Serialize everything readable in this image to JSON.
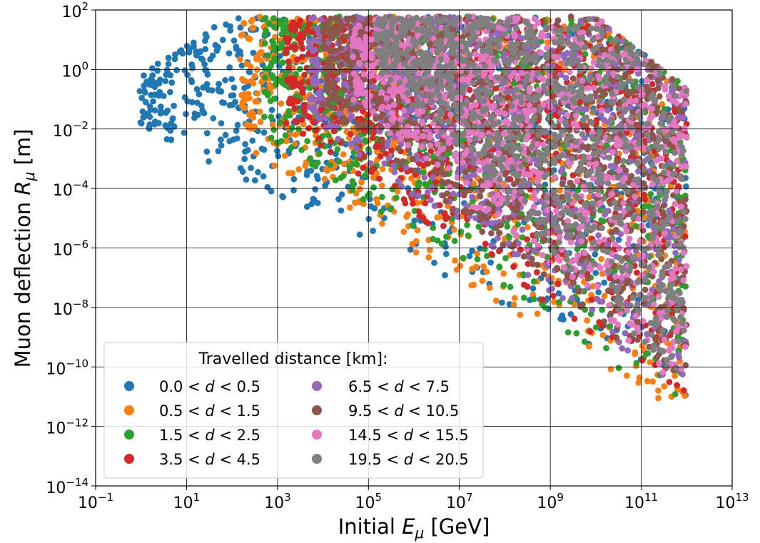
{
  "chart_data": {
    "type": "scatter",
    "xlabel_text": "Initial ",
    "xlabel_sym": "E",
    "xlabel_sub": "μ",
    "xlabel_unit": " [GeV]",
    "ylabel_text": "Muon deflection ",
    "ylabel_sym": "R",
    "ylabel_sub": "μ",
    "ylabel_unit": " [m]",
    "x_scale": "log",
    "y_scale": "log",
    "xlim": [
      0.1,
      10000000000000.0
    ],
    "ylim": [
      1e-14,
      100
    ],
    "grid": true,
    "x_ticks": [
      {
        "base": "10",
        "exp": "−1"
      },
      {
        "base": "10",
        "exp": "1"
      },
      {
        "base": "10",
        "exp": "3"
      },
      {
        "base": "10",
        "exp": "5"
      },
      {
        "base": "10",
        "exp": "7"
      },
      {
        "base": "10",
        "exp": "9"
      },
      {
        "base": "10",
        "exp": "11"
      },
      {
        "base": "10",
        "exp": "13"
      }
    ],
    "y_ticks": [
      {
        "base": "10",
        "exp": "2"
      },
      {
        "base": "10",
        "exp": "0"
      },
      {
        "base": "10",
        "exp": "−2"
      },
      {
        "base": "10",
        "exp": "−4"
      },
      {
        "base": "10",
        "exp": "−6"
      },
      {
        "base": "10",
        "exp": "−8"
      },
      {
        "base": "10",
        "exp": "−10"
      },
      {
        "base": "10",
        "exp": "−12"
      },
      {
        "base": "10",
        "exp": "−14"
      }
    ],
    "legend": {
      "title": "Travelled distance [km]:",
      "placement": "lower-left",
      "columns": 2
    },
    "series": [
      {
        "name": "0.0 < d < 0.5",
        "lo": "0.0",
        "hi": "0.5",
        "color": "#1f77b4",
        "x_range": [
          0.9,
          1000000000000.0
        ],
        "y_top_at_low_x": 0.6,
        "y_top_max": 60,
        "y_bottom_at_low_x": 0.01,
        "y_bottom_at_high_x": 1e-11
      },
      {
        "name": "0.5 < d < 1.5",
        "lo": "0.5",
        "hi": "1.5",
        "color": "#ff7f0e",
        "x_range": [
          150,
          1000000000000.0
        ],
        "y_top_max": 60,
        "y_bottom_at_low_x": 0.003,
        "y_bottom_at_high_x": 1e-12
      },
      {
        "name": "1.5 < d < 2.5",
        "lo": "1.5",
        "hi": "2.5",
        "color": "#2ca02c",
        "x_range": [
          500,
          1000000000000.0
        ],
        "y_top_max": 60,
        "y_bottom_at_low_x": 0.005,
        "y_bottom_at_high_x": 3e-12
      },
      {
        "name": "3.5 < d < 4.5",
        "lo": "3.5",
        "hi": "4.5",
        "color": "#d62728",
        "x_range": [
          1500,
          1000000000000.0
        ],
        "y_top_max": 60,
        "y_bottom_at_low_x": 0.01,
        "y_bottom_at_high_x": 1e-11
      },
      {
        "name": "6.5 < d < 7.5",
        "lo": "6.5",
        "hi": "7.5",
        "color": "#9467bd",
        "x_range": [
          5000,
          1000000000000.0
        ],
        "y_top_max": 60,
        "y_bottom_at_low_x": 0.02,
        "y_bottom_at_high_x": 1e-11
      },
      {
        "name": "9.5 < d < 10.5",
        "lo": "9.5",
        "hi": "10.5",
        "color": "#8c564b",
        "x_range": [
          10000,
          1000000000000.0
        ],
        "y_top_max": 60,
        "y_bottom_at_low_x": 0.05,
        "y_bottom_at_high_x": 1e-11
      },
      {
        "name": "14.5 < d < 15.5",
        "lo": "14.5",
        "hi": "15.5",
        "color": "#e377c2",
        "x_range": [
          40000,
          1000000000000.0
        ],
        "y_top_max": 60,
        "y_bottom_at_low_x": 0.1,
        "y_bottom_at_high_x": 1e-11
      },
      {
        "name": "19.5 < d < 20.5",
        "lo": "19.5",
        "hi": "20.5",
        "color": "#7f7f7f",
        "x_range": [
          150000,
          1000000000000.0
        ],
        "y_top_max": 60,
        "y_bottom_at_low_x": 1,
        "y_bottom_at_high_x": 1e-11
      }
    ]
  }
}
